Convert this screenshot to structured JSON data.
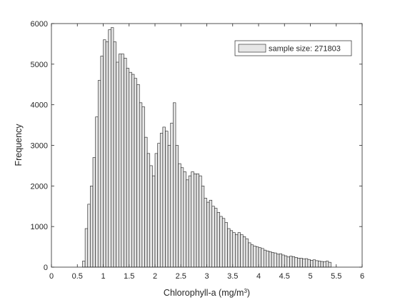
{
  "chart_data": {
    "type": "bar",
    "subtype": "histogram",
    "xlabel_prefix": "Chlorophyll-a (mg/m",
    "xlabel_sup": "3",
    "xlabel_suffix": ")",
    "ylabel": "Frequency",
    "xlim": [
      0,
      6
    ],
    "ylim": [
      0,
      6000
    ],
    "xticks": [
      0,
      0.5,
      1,
      1.5,
      2,
      2.5,
      3,
      3.5,
      4,
      4.5,
      5,
      5.5,
      6
    ],
    "xtick_labels": [
      "0",
      "0.5",
      "1",
      "1.5",
      "2",
      "2.5",
      "3",
      "3.5",
      "4",
      "4.5",
      "5",
      "5.5",
      "6"
    ],
    "yticks": [
      0,
      1000,
      2000,
      3000,
      4000,
      5000,
      6000
    ],
    "ytick_labels": [
      "0",
      "1000",
      "2000",
      "3000",
      "4000",
      "5000",
      "6000"
    ],
    "grid": false,
    "legend_position": "top-right",
    "legend_label": "sample size: 271803",
    "bar_color": "#e6e6e6",
    "edge_color": "#1a1a1a",
    "bin_width": 0.05,
    "bin_start": 0.6,
    "values": [
      150,
      950,
      1550,
      2000,
      2700,
      3700,
      4600,
      5200,
      5600,
      5550,
      5850,
      5900,
      5550,
      5050,
      5250,
      5250,
      5150,
      4900,
      4800,
      4750,
      4650,
      4500,
      4050,
      3950,
      3200,
      2800,
      2500,
      2250,
      2800,
      3050,
      3300,
      3450,
      3350,
      3000,
      3550,
      4050,
      3000,
      2550,
      2450,
      2350,
      2150,
      2250,
      2350,
      2300,
      2300,
      2250,
      2000,
      1700,
      1600,
      1650,
      1500,
      1450,
      1350,
      1250,
      1200,
      1100,
      950,
      900,
      850,
      800,
      850,
      800,
      750,
      700,
      600,
      550,
      520,
      500,
      480,
      460,
      420,
      400,
      380,
      360,
      350,
      320,
      330,
      300,
      280,
      250,
      270,
      260,
      240,
      220,
      220,
      200,
      210,
      190,
      170,
      180,
      160,
      150,
      140,
      130,
      150,
      120
    ]
  }
}
